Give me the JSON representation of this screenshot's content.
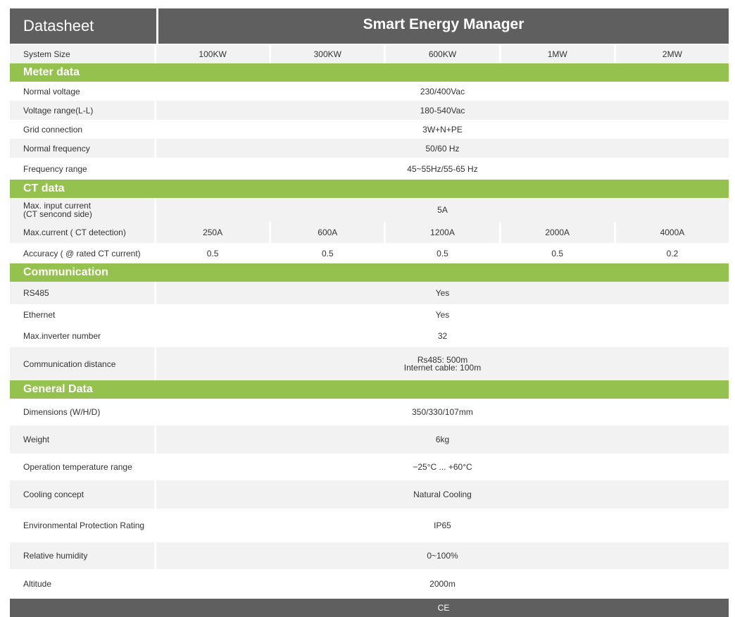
{
  "header": {
    "left_title": "Datasheet",
    "right_title": "Smart Energy Manager"
  },
  "system_size": {
    "label": "System Size",
    "values": [
      "100KW",
      "300KW",
      "600KW",
      "1MW",
      "2MW"
    ]
  },
  "sections": {
    "meter": {
      "title": "Meter data",
      "rows": [
        {
          "label": "Normal voltage",
          "value": "230/400Vac"
        },
        {
          "label": "Voltage range(L-L)",
          "value": "180-540Vac"
        },
        {
          "label": "Grid connection",
          "value": "3W+N+PE"
        },
        {
          "label": "Normal frequency",
          "value": "50/60 Hz"
        },
        {
          "label": "Frequency range",
          "value": "45~55Hz/55-65 Hz"
        }
      ]
    },
    "ct": {
      "title": "CT data",
      "max_input": {
        "label_line1": "Max. input current",
        "label_line2": "(CT sencond side)",
        "value": "5A"
      },
      "max_current": {
        "label": "Max.current  ( CT detection)",
        "values": [
          "250A",
          "600A",
          "1200A",
          "2000A",
          "4000A"
        ]
      },
      "accuracy": {
        "label": "Accuracy ( @ rated CT current)",
        "values": [
          "0.5",
          "0.5",
          "0.5",
          "0.5",
          "0.2"
        ]
      }
    },
    "communication": {
      "title": "Communication",
      "rows": [
        {
          "label": "RS485",
          "value": "Yes"
        },
        {
          "label": "Ethernet",
          "value": "Yes"
        },
        {
          "label": "Max.inverter number",
          "value": "32"
        }
      ],
      "distance": {
        "label": "Communication distance",
        "value_line1": "Rs485: 500m",
        "value_line2": "Internet cable: 100m"
      }
    },
    "general": {
      "title": "General Data",
      "rows": [
        {
          "label": "Dimensions (W/H/D)",
          "value": "350/330/107mm"
        },
        {
          "label": "Weight",
          "value": "6kg"
        },
        {
          "label": "Operation temperature range",
          "value": "−25°C ... +60°C"
        },
        {
          "label": "Cooling concept",
          "value": "Natural Cooling"
        },
        {
          "label": "Environmental Protection Rating",
          "value": "IP65"
        },
        {
          "label": "Relative humidity",
          "value": "0~100%"
        },
        {
          "label": "Altitude",
          "value": "2000m"
        }
      ]
    }
  },
  "footer": {
    "certification": "CE"
  }
}
